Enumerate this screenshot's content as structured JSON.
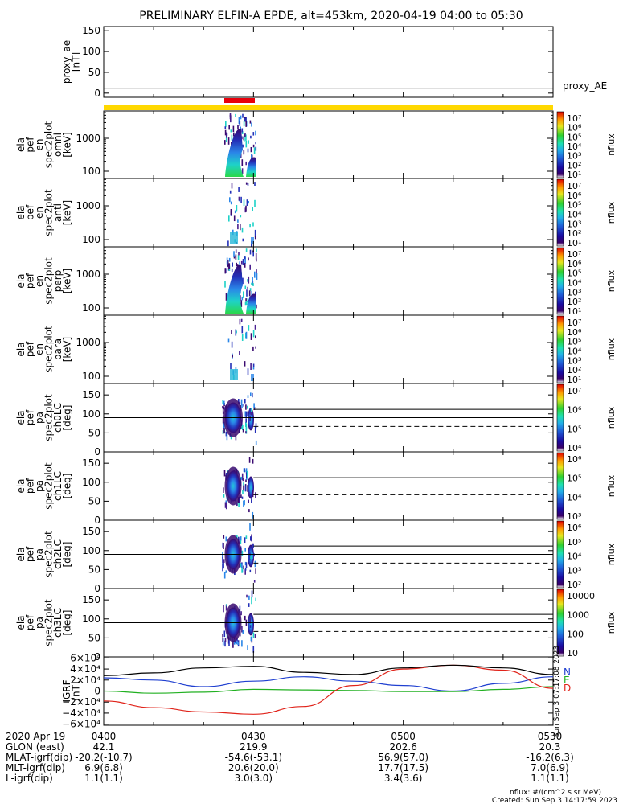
{
  "title": "PRELIMINARY ELFIN-A EPDE, alt=453km, 2020-04-19 04:00 to 05:30",
  "colors": {
    "bar_yellow": "#ffd800",
    "bar_red": "#e8000b",
    "n_comp": "#1f3fd0",
    "e_comp": "#21b021",
    "d_comp": "#e0241b",
    "total": "#000000"
  },
  "chart_data": [
    {
      "type": "line",
      "ylabel_lines": [
        "proxy_ae",
        "[nT]"
      ],
      "yticks": [
        "150",
        "100",
        "50",
        "0"
      ],
      "ylim": [
        -10,
        160
      ],
      "series": [
        {
          "name": "proxy_AE",
          "values": [
            12,
            12
          ]
        }
      ],
      "x": [
        "0400",
        "0530"
      ]
    },
    {
      "type": "heatmap",
      "ylabel_lines": [
        "ela",
        "pef",
        "en",
        "spec2plot",
        "omni",
        "[keV]"
      ],
      "yscale": "log",
      "yticks": [
        "1000",
        "100"
      ],
      "colorbar": {
        "label": "nflux",
        "ticks": [
          "10⁷",
          "10⁶",
          "10⁵",
          "10⁴",
          "10³",
          "10²",
          "10¹"
        ]
      }
    },
    {
      "type": "heatmap",
      "ylabel_lines": [
        "ela",
        "pef",
        "en",
        "spec2plot",
        "anti",
        "[keV]"
      ],
      "yscale": "log",
      "yticks": [
        "1000",
        "100"
      ],
      "colorbar": {
        "label": "nflux",
        "ticks": [
          "10⁷",
          "10⁶",
          "10⁵",
          "10⁴",
          "10³",
          "10²",
          "10¹"
        ]
      }
    },
    {
      "type": "heatmap",
      "ylabel_lines": [
        "ela",
        "pef",
        "en",
        "spec2plot",
        "perp",
        "[keV]"
      ],
      "yscale": "log",
      "yticks": [
        "1000",
        "100"
      ],
      "colorbar": {
        "label": "nflux",
        "ticks": [
          "10⁷",
          "10⁶",
          "10⁵",
          "10⁴",
          "10³",
          "10²",
          "10¹"
        ]
      }
    },
    {
      "type": "heatmap",
      "ylabel_lines": [
        "ela",
        "pef",
        "en",
        "spec2plot",
        "para",
        "[keV]"
      ],
      "yscale": "log",
      "yticks": [
        "1000",
        "100"
      ],
      "colorbar": {
        "label": "nflux",
        "ticks": [
          "10⁷",
          "10⁶",
          "10⁵",
          "10⁴",
          "10³",
          "10²",
          "10¹"
        ]
      }
    },
    {
      "type": "heatmap",
      "ylabel_lines": [
        "ela",
        "pef",
        "pa",
        "spec2plot",
        "ch0LC",
        "[deg]"
      ],
      "yticks": [
        "150",
        "100",
        "50",
        "0"
      ],
      "ylim": [
        0,
        180
      ],
      "lines": {
        "solid": [
          90,
          112
        ],
        "dashed_from_0430": 67
      },
      "colorbar": {
        "label": "nflux",
        "ticks": [
          "10⁷",
          "10⁶",
          "10⁵",
          "10⁴"
        ]
      }
    },
    {
      "type": "heatmap",
      "ylabel_lines": [
        "ela",
        "pef",
        "pa",
        "spec2plot",
        "ch1LC",
        "[deg]"
      ],
      "yticks": [
        "150",
        "100",
        "50",
        "0"
      ],
      "ylim": [
        0,
        180
      ],
      "lines": {
        "solid": [
          90,
          112
        ],
        "dashed_from_0430": 67
      },
      "colorbar": {
        "label": "nflux",
        "ticks": [
          "10⁶",
          "10⁵",
          "10⁴",
          "10³"
        ]
      }
    },
    {
      "type": "heatmap",
      "ylabel_lines": [
        "ela",
        "pef",
        "pa",
        "spec2plot",
        "ch2LC",
        "[deg]"
      ],
      "yticks": [
        "150",
        "100",
        "50",
        "0"
      ],
      "ylim": [
        0,
        180
      ],
      "lines": {
        "solid": [
          90,
          112
        ],
        "dashed_from_0430": 67
      },
      "colorbar": {
        "label": "nflux",
        "ticks": [
          "10⁶",
          "10⁵",
          "10⁴",
          "10³",
          "10²"
        ]
      }
    },
    {
      "type": "heatmap",
      "ylabel_lines": [
        "ela",
        "pef",
        "pa",
        "spec2plot",
        "ch3LC",
        "[deg]"
      ],
      "yticks": [
        "150",
        "100",
        "50",
        "0"
      ],
      "ylim": [
        0,
        180
      ],
      "lines": {
        "solid": [
          90,
          112
        ],
        "dashed_from_0430": 67
      },
      "colorbar": {
        "label": "nflux",
        "ticks": [
          "10000",
          "1000",
          "100",
          "10"
        ]
      }
    },
    {
      "type": "line",
      "ylabel_lines": [
        "IGRF",
        "[nT]"
      ],
      "yticks": [
        "6×10⁴",
        "4×10⁴",
        "2×10⁴",
        "0",
        "−2×10⁴",
        "−4×10⁴",
        "−6×10⁴"
      ],
      "ylim": [
        -62000,
        62000
      ],
      "x": [
        0,
        10,
        20,
        30,
        40,
        50,
        60,
        70,
        80,
        90
      ],
      "series": [
        {
          "name": "N",
          "values": [
            24000,
            20000,
            8000,
            18000,
            26000,
            18000,
            10000,
            0,
            14000,
            26000
          ]
        },
        {
          "name": "E",
          "values": [
            0,
            -4000,
            -2000,
            3000,
            2000,
            1000,
            -1000,
            -1000,
            3000,
            8000
          ]
        },
        {
          "name": "D",
          "values": [
            -18000,
            -30000,
            -38000,
            -42000,
            -28000,
            10000,
            40000,
            47000,
            38000,
            5000
          ]
        },
        {
          "name": "",
          "values": [
            28000,
            33000,
            42000,
            45000,
            34000,
            30000,
            42000,
            47000,
            42000,
            30000
          ]
        }
      ],
      "legend": [
        "N",
        "E",
        "D"
      ],
      "side_text": "Sun Sep 3 07:17:08 2023"
    }
  ],
  "footer": {
    "rows": [
      {
        "label": "2020 Apr 19",
        "values": [
          "0400",
          "0430",
          "0500",
          "0530"
        ]
      },
      {
        "label": "GLON (east)",
        "values": [
          "42.1",
          "219.9",
          "202.6",
          "20.3"
        ]
      },
      {
        "label": "MLAT-igrf(dip)",
        "values": [
          "-20.2(-10.7)",
          "-54.6(-53.1)",
          "56.9(57.0)",
          "-16.2(6.3)"
        ]
      },
      {
        "label": "MLT-igrf(dip)",
        "values": [
          "6.9(6.8)",
          "20.6(20.0)",
          "17.7(17.5)",
          "7.0(6.9)"
        ]
      },
      {
        "label": "L-igrf(dip)",
        "values": [
          "1.1(1.1)",
          "3.0(3.0)",
          "3.4(3.6)",
          "1.1(1.1)"
        ]
      }
    ],
    "units": "nflux: #/(cm^2 s sr MeV)",
    "created": "Created: Sun Sep  3 14:17:59 2023"
  }
}
